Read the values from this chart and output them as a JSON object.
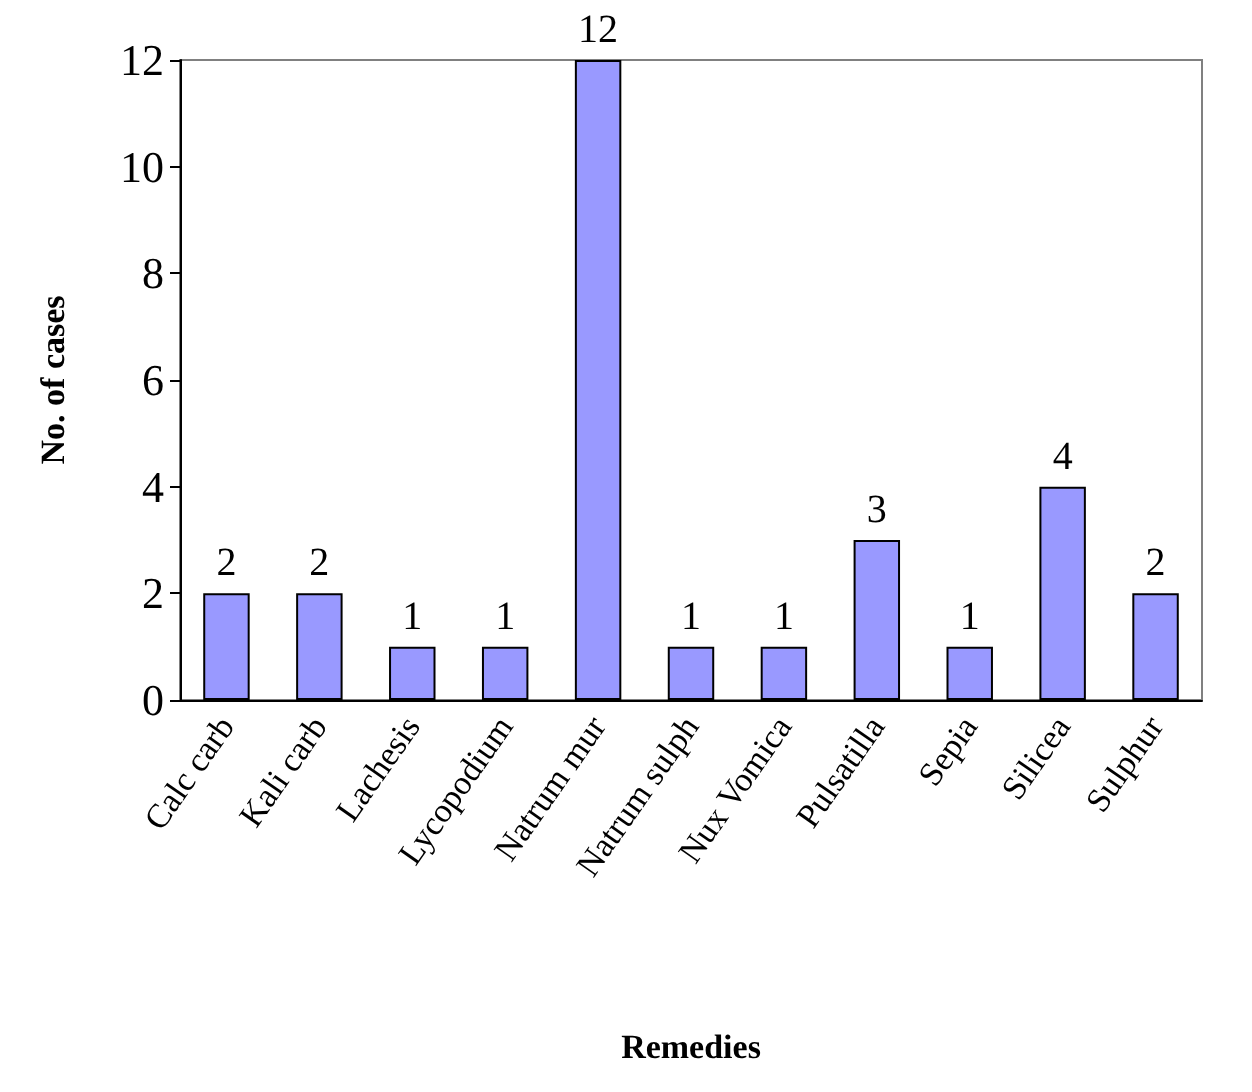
{
  "chart_data": {
    "type": "bar",
    "xlabel": "Remedies",
    "ylabel": "No. of cases",
    "categories": [
      "Calc carb",
      "Kali carb",
      "Lachesis",
      "Lycopodium",
      "Natrum mur",
      "Natrum sulph",
      "Nux Vomica",
      "Pulsatilla",
      "Sepia",
      "Silicea",
      "Sulphur"
    ],
    "values": [
      2,
      2,
      1,
      1,
      12,
      1,
      1,
      3,
      1,
      4,
      2
    ],
    "color": "#9999ff",
    "ylim": [
      0,
      12
    ],
    "yticks": [
      0,
      2,
      4,
      6,
      8,
      10,
      12
    ],
    "grid": false,
    "data_labels": true
  }
}
